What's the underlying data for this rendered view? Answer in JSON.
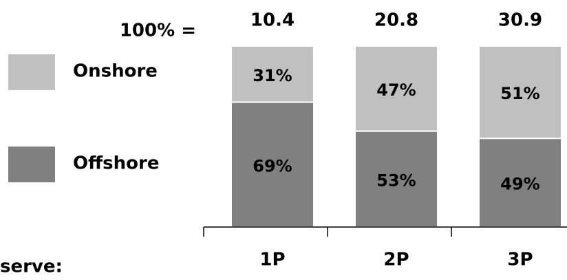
{
  "chart_data": {
    "type": "stacked_bar_100",
    "categories": [
      "1P",
      "2P",
      "3P"
    ],
    "total_label": "100% =",
    "totals": [
      10.4,
      20.8,
      30.9
    ],
    "series": [
      {
        "name": "Offshore",
        "color": "#808080",
        "values": [
          69,
          53,
          49
        ],
        "value_labels": [
          "69%",
          "53%",
          "49%"
        ]
      },
      {
        "name": "Onshore",
        "color": "#c0c0c0",
        "values": [
          31,
          47,
          51
        ],
        "value_labels": [
          "31%",
          "47%",
          "51%"
        ]
      }
    ],
    "ylim": [
      0,
      100
    ],
    "note": "serve:"
  }
}
